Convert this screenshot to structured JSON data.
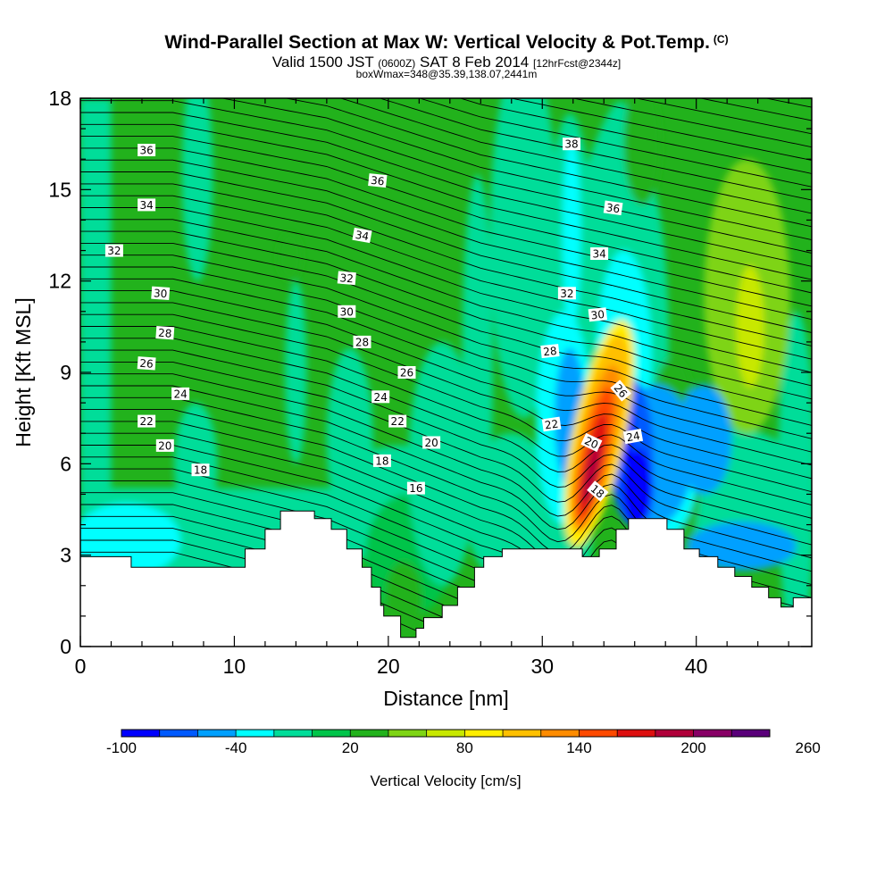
{
  "chart_data": {
    "type": "contour-cross-section",
    "title": "Wind-Parallel Section at Max W: Vertical Velocity & Pot.Temp.",
    "title_mark": "(C)",
    "subtitle_main": "Valid 1500 JST",
    "subtitle_z": "(0600Z)",
    "subtitle_date": "SAT 8 Feb 2014",
    "subtitle_fcst": "[12hrFcst@2344z]",
    "subtitle2": "boxWmax=348@35.39,138.07,2441m",
    "xlabel": "Distance [nm]",
    "ylabel": "Height [Kft MSL]",
    "xlim": [
      0,
      47.5
    ],
    "ylim": [
      0,
      18
    ],
    "x_ticks": [
      "0",
      "10",
      "20",
      "30",
      "40"
    ],
    "y_ticks": [
      "0",
      "3",
      "6",
      "9",
      "12",
      "15",
      "18"
    ],
    "colorbar": {
      "title": "Vertical Velocity [cm/s]",
      "tick_labels": [
        "-100",
        "-40",
        "20",
        "80",
        "140",
        "200",
        "260"
      ],
      "colors": [
        "#0000ff",
        "#005aff",
        "#00a0ff",
        "#00ffff",
        "#00dd99",
        "#00c44a",
        "#22b21c",
        "#7ed414",
        "#c8e800",
        "#ffee00",
        "#ffc000",
        "#ff8c00",
        "#ff4a00",
        "#dd1010",
        "#b0003a",
        "#880066",
        "#5a007a"
      ]
    },
    "terrain": [
      [
        0,
        2.95
      ],
      [
        3.3,
        2.95
      ],
      [
        3.3,
        2.6
      ],
      [
        10.7,
        2.6
      ],
      [
        10.7,
        3.2
      ],
      [
        12.0,
        3.2
      ],
      [
        12.0,
        3.85
      ],
      [
        13.0,
        3.85
      ],
      [
        13.0,
        4.45
      ],
      [
        15.2,
        4.45
      ],
      [
        15.2,
        4.2
      ],
      [
        16.3,
        4.2
      ],
      [
        16.3,
        3.85
      ],
      [
        17.3,
        3.85
      ],
      [
        17.3,
        3.2
      ],
      [
        18.3,
        3.2
      ],
      [
        18.3,
        2.6
      ],
      [
        18.9,
        2.6
      ],
      [
        18.9,
        1.95
      ],
      [
        19.5,
        1.95
      ],
      [
        19.5,
        1.35
      ],
      [
        19.7,
        1.35
      ],
      [
        19.7,
        1.0
      ],
      [
        20.8,
        1.0
      ],
      [
        20.8,
        0.3
      ],
      [
        21.8,
        0.3
      ],
      [
        21.8,
        0.6
      ],
      [
        22.3,
        0.6
      ],
      [
        22.3,
        0.95
      ],
      [
        23.5,
        0.95
      ],
      [
        23.5,
        1.35
      ],
      [
        24.5,
        1.35
      ],
      [
        24.5,
        1.95
      ],
      [
        25.6,
        1.95
      ],
      [
        25.6,
        2.6
      ],
      [
        26.2,
        2.6
      ],
      [
        26.2,
        2.95
      ],
      [
        27.4,
        2.95
      ],
      [
        27.4,
        3.2
      ],
      [
        32.6,
        3.2
      ],
      [
        32.6,
        2.95
      ],
      [
        33.7,
        2.95
      ],
      [
        33.7,
        3.2
      ],
      [
        34.8,
        3.2
      ],
      [
        34.8,
        3.85
      ],
      [
        35.6,
        3.85
      ],
      [
        35.6,
        4.2
      ],
      [
        38.1,
        4.2
      ],
      [
        38.1,
        3.85
      ],
      [
        39.2,
        3.85
      ],
      [
        39.2,
        3.2
      ],
      [
        40.2,
        3.2
      ],
      [
        40.2,
        2.95
      ],
      [
        41.4,
        2.95
      ],
      [
        41.4,
        2.6
      ],
      [
        42.5,
        2.6
      ],
      [
        42.5,
        2.3
      ],
      [
        43.6,
        2.3
      ],
      [
        43.6,
        1.95
      ],
      [
        44.7,
        1.95
      ],
      [
        44.7,
        1.6
      ],
      [
        45.5,
        1.6
      ],
      [
        45.5,
        1.3
      ],
      [
        46.3,
        1.3
      ],
      [
        46.3,
        1.6
      ],
      [
        47.5,
        1.6
      ]
    ],
    "theta_labels": [
      {
        "v": "36",
        "x": 4.3,
        "y": 16.3,
        "r": 0
      },
      {
        "v": "34",
        "x": 4.3,
        "y": 14.5,
        "r": 0
      },
      {
        "v": "32",
        "x": 2.2,
        "y": 13.0,
        "r": 0
      },
      {
        "v": "30",
        "x": 5.2,
        "y": 11.6,
        "r": 4
      },
      {
        "v": "28",
        "x": 5.5,
        "y": 10.3,
        "r": 4
      },
      {
        "v": "26",
        "x": 4.3,
        "y": 9.3,
        "r": 4
      },
      {
        "v": "24",
        "x": 6.5,
        "y": 8.3,
        "r": 0
      },
      {
        "v": "22",
        "x": 4.3,
        "y": 7.4,
        "r": 0
      },
      {
        "v": "20",
        "x": 5.5,
        "y": 6.6,
        "r": 0
      },
      {
        "v": "18",
        "x": 7.8,
        "y": 5.8,
        "r": 0
      },
      {
        "v": "36",
        "x": 19.3,
        "y": 15.3,
        "r": 6
      },
      {
        "v": "34",
        "x": 18.3,
        "y": 13.5,
        "r": 10
      },
      {
        "v": "32",
        "x": 17.3,
        "y": 12.1,
        "r": 5
      },
      {
        "v": "30",
        "x": 17.3,
        "y": 11.0,
        "r": 0
      },
      {
        "v": "28",
        "x": 18.3,
        "y": 10.0,
        "r": 0
      },
      {
        "v": "26",
        "x": 21.2,
        "y": 9.0,
        "r": 0
      },
      {
        "v": "24",
        "x": 19.5,
        "y": 8.2,
        "r": 0
      },
      {
        "v": "22",
        "x": 20.6,
        "y": 7.4,
        "r": 0
      },
      {
        "v": "20",
        "x": 22.8,
        "y": 6.7,
        "r": 0
      },
      {
        "v": "18",
        "x": 19.6,
        "y": 6.1,
        "r": 0
      },
      {
        "v": "16",
        "x": 21.8,
        "y": 5.2,
        "r": 0
      },
      {
        "v": "38",
        "x": 31.9,
        "y": 16.5,
        "r": 0
      },
      {
        "v": "36",
        "x": 34.6,
        "y": 14.4,
        "r": 8
      },
      {
        "v": "34",
        "x": 33.7,
        "y": 12.9,
        "r": 0
      },
      {
        "v": "32",
        "x": 31.6,
        "y": 11.6,
        "r": 0
      },
      {
        "v": "30",
        "x": 33.6,
        "y": 10.9,
        "r": -6
      },
      {
        "v": "28",
        "x": 30.5,
        "y": 9.7,
        "r": -6
      },
      {
        "v": "26",
        "x": 35.1,
        "y": 8.4,
        "r": 50
      },
      {
        "v": "24",
        "x": 35.9,
        "y": 6.9,
        "r": -10
      },
      {
        "v": "22",
        "x": 30.6,
        "y": 7.3,
        "r": -8
      },
      {
        "v": "20",
        "x": 33.2,
        "y": 6.7,
        "r": 25
      },
      {
        "v": "18",
        "x": 33.6,
        "y": 5.1,
        "r": 40
      }
    ]
  }
}
